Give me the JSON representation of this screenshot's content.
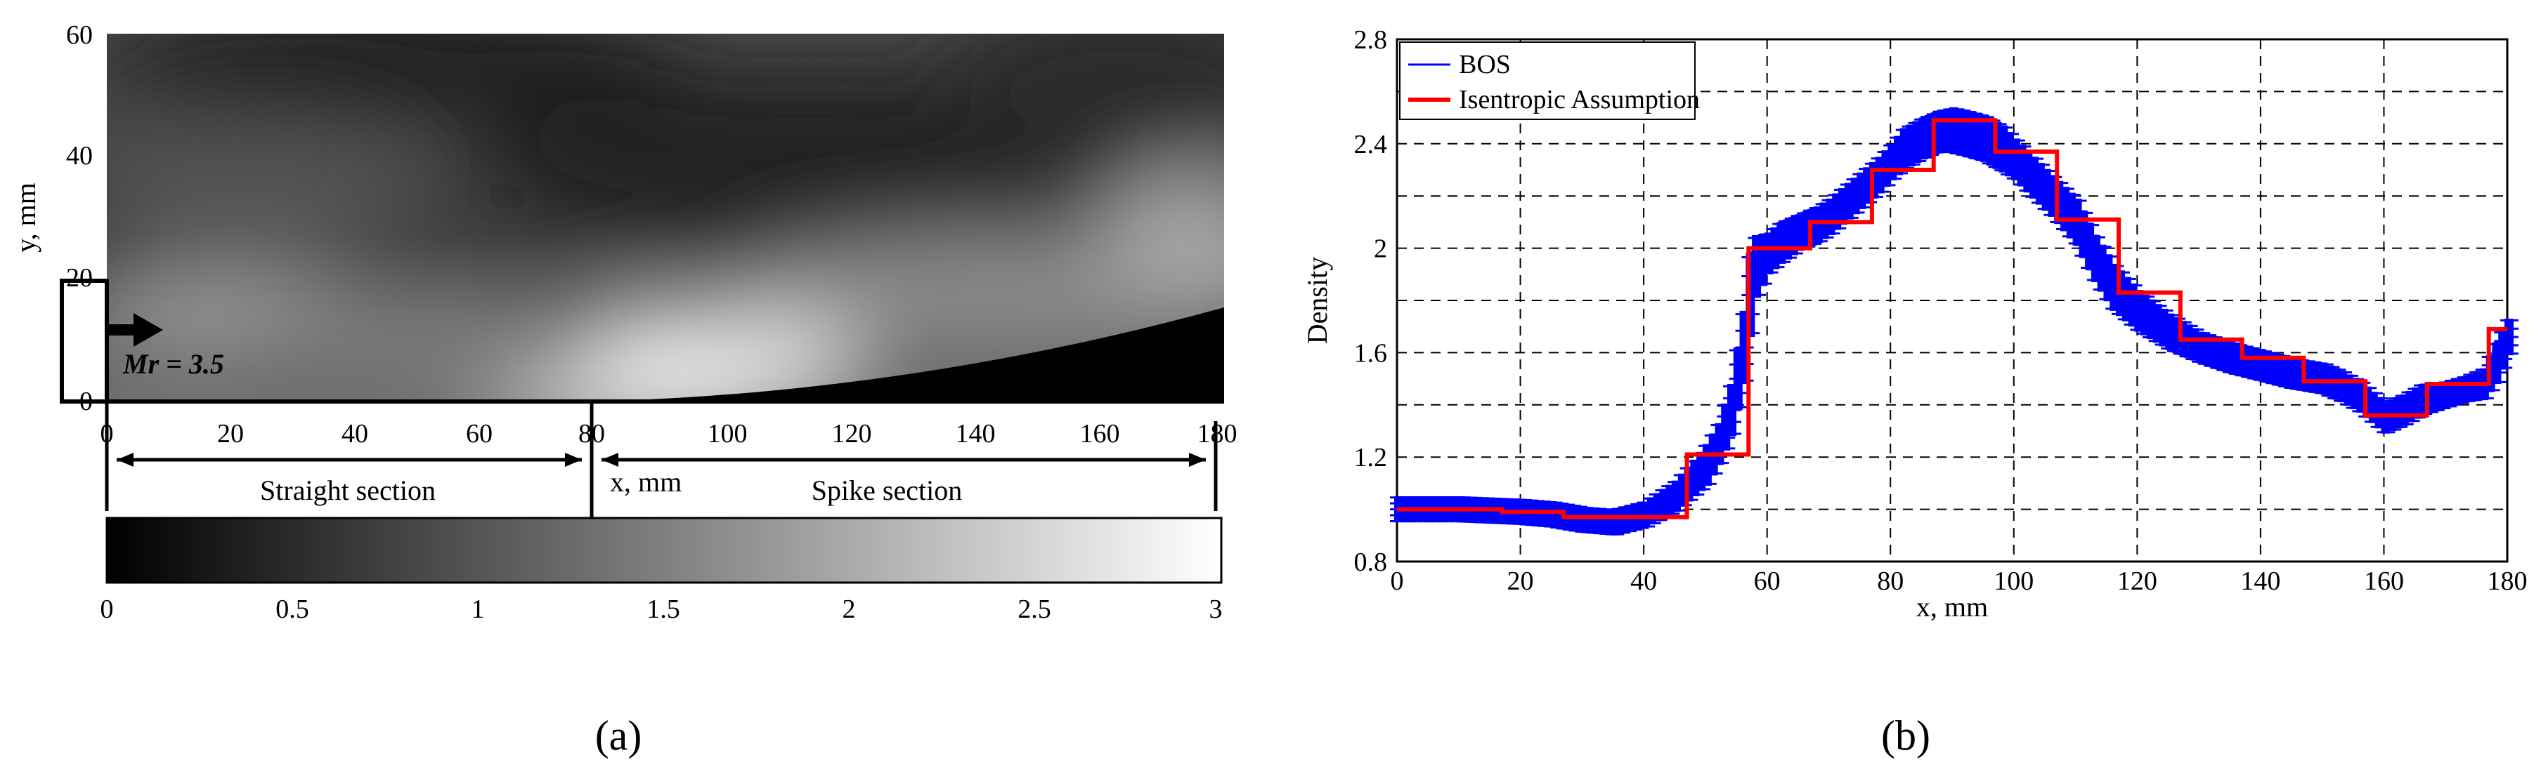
{
  "panel_a": {
    "panel_label": "(a)",
    "ylabel": "y, mm",
    "xlabel": "x, mm",
    "y_ticks": [
      "60",
      "40",
      "20",
      "0"
    ],
    "x_ticks": [
      "0",
      "20",
      "40",
      "60",
      "80",
      "100",
      "120",
      "140",
      "160",
      "180"
    ],
    "straight_label": "Straight section",
    "spike_label": "Spike section",
    "mach_label": "Mr = 3.5",
    "colorbar_ticks": [
      "0",
      "0.5",
      "1",
      "1.5",
      "2",
      "2.5",
      "3"
    ],
    "colors": {
      "dark": "#1b1b1b",
      "bright": "#f4f4f4",
      "body": "#000000"
    }
  },
  "chart_data": [
    {
      "type": "heatmap",
      "title": "",
      "xlabel": "x, mm",
      "ylabel": "y, mm",
      "xlim": [
        0,
        180
      ],
      "ylim": [
        0,
        60
      ],
      "colorbar_range": [
        0,
        3
      ],
      "colorbar_ticks": [
        0,
        0.5,
        1,
        1.5,
        2,
        2.5,
        3
      ],
      "sections": [
        {
          "name": "Straight section",
          "x_range": [
            0,
            80
          ]
        },
        {
          "name": "Spike section",
          "x_range": [
            80,
            180
          ]
        }
      ],
      "spike_profile": {
        "x": [
          80,
          110,
          140,
          160,
          180
        ],
        "y": [
          0,
          1.5,
          5,
          9,
          15
        ]
      },
      "annotation": "Mr = 3.5"
    },
    {
      "type": "line",
      "panel_label": "(b)",
      "title": "",
      "xlabel": "x, mm",
      "ylabel": "Density",
      "xlim": [
        0,
        180
      ],
      "ylim": [
        0.8,
        2.8
      ],
      "x_ticks": [
        "0",
        "20",
        "40",
        "60",
        "80",
        "100",
        "120",
        "140",
        "160",
        "180"
      ],
      "y_ticks": [
        "0.8",
        "1.2",
        "1.6",
        "2",
        "2.4",
        "2.8"
      ],
      "grid": true,
      "legend_position": "top-left",
      "series": [
        {
          "name": "BOS",
          "color": "#0000ff",
          "x": [
            0,
            10,
            20,
            25,
            30,
            35,
            40,
            45,
            48,
            50,
            52,
            54,
            56,
            57,
            58,
            60,
            62,
            65,
            68,
            70,
            72,
            75,
            78,
            80,
            82,
            85,
            88,
            90,
            92,
            95,
            98,
            100,
            103,
            106,
            110,
            113,
            116,
            120,
            125,
            130,
            135,
            140,
            145,
            150,
            153,
            156,
            158,
            160,
            163,
            166,
            170,
            173,
            176,
            178,
            180
          ],
          "y": [
            1.0,
            1.0,
            0.99,
            0.98,
            0.96,
            0.95,
            0.98,
            1.05,
            1.12,
            1.17,
            1.25,
            1.38,
            1.62,
            1.82,
            1.93,
            1.98,
            2.02,
            2.06,
            2.09,
            2.12,
            2.16,
            2.22,
            2.28,
            2.33,
            2.38,
            2.42,
            2.45,
            2.45,
            2.44,
            2.42,
            2.38,
            2.34,
            2.27,
            2.2,
            2.1,
            1.96,
            1.85,
            1.76,
            1.68,
            1.62,
            1.58,
            1.55,
            1.52,
            1.5,
            1.47,
            1.43,
            1.39,
            1.35,
            1.38,
            1.42,
            1.44,
            1.46,
            1.48,
            1.56,
            1.66
          ],
          "band": [
            0.05,
            0.05,
            0.05,
            0.05,
            0.05,
            0.05,
            0.05,
            0.06,
            0.07,
            0.08,
            0.08,
            0.1,
            0.14,
            0.16,
            0.12,
            0.08,
            0.08,
            0.07,
            0.07,
            0.07,
            0.07,
            0.07,
            0.07,
            0.07,
            0.08,
            0.08,
            0.08,
            0.09,
            0.09,
            0.09,
            0.09,
            0.08,
            0.08,
            0.08,
            0.09,
            0.09,
            0.09,
            0.08,
            0.07,
            0.06,
            0.06,
            0.06,
            0.06,
            0.06,
            0.06,
            0.06,
            0.06,
            0.06,
            0.06,
            0.06,
            0.05,
            0.05,
            0.06,
            0.08,
            0.07
          ]
        },
        {
          "name": "Isentropic Assumption",
          "color": "#ff0000",
          "step": true,
          "x": [
            0,
            17,
            17,
            27,
            27,
            47,
            47,
            57,
            57,
            67,
            67,
            77,
            77,
            87,
            87,
            97,
            97,
            107,
            107,
            117,
            117,
            127,
            127,
            137,
            137,
            147,
            147,
            157,
            157,
            167,
            167,
            177,
            177,
            180
          ],
          "y": [
            1.0,
            1.0,
            0.99,
            0.99,
            0.97,
            0.97,
            1.21,
            1.21,
            2.0,
            2.0,
            2.1,
            2.1,
            2.3,
            2.3,
            2.49,
            2.49,
            2.37,
            2.37,
            2.11,
            2.11,
            1.83,
            1.83,
            1.65,
            1.65,
            1.58,
            1.58,
            1.49,
            1.49,
            1.36,
            1.36,
            1.48,
            1.48,
            1.69,
            1.69
          ]
        }
      ]
    }
  ]
}
